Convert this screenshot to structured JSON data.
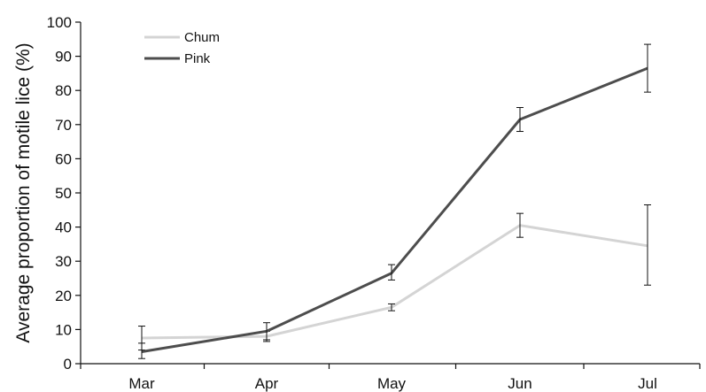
{
  "chart_data": {
    "type": "line",
    "categories": [
      "Mar",
      "Apr",
      "May",
      "Jun",
      "Jul"
    ],
    "ylabel": "Average proportion of motile lice (%)",
    "xlabel": "",
    "ylim": [
      0,
      100
    ],
    "yticks": [
      "0",
      "10",
      "20",
      "30",
      "40",
      "50",
      "60",
      "70",
      "80",
      "90",
      "100"
    ],
    "grid": false,
    "legend_position": "top-left",
    "series": [
      {
        "name": "Chum",
        "color": "#d4d4d4",
        "values": [
          7.5,
          8.0,
          16.5,
          40.5,
          34.5
        ],
        "error": [
          [
            4.0,
            11.0
          ],
          [
            6.5,
            9.5
          ],
          [
            15.5,
            17.5
          ],
          [
            37.0,
            44.0
          ],
          [
            23.0,
            46.5
          ]
        ]
      },
      {
        "name": "Pink",
        "color": "#4d4d4d",
        "values": [
          3.5,
          9.5,
          26.5,
          71.5,
          86.5
        ],
        "error": [
          [
            1.5,
            6.0
          ],
          [
            7.0,
            12.0
          ],
          [
            24.5,
            29.0
          ],
          [
            68.0,
            75.0
          ],
          [
            79.5,
            93.5
          ]
        ]
      }
    ]
  }
}
